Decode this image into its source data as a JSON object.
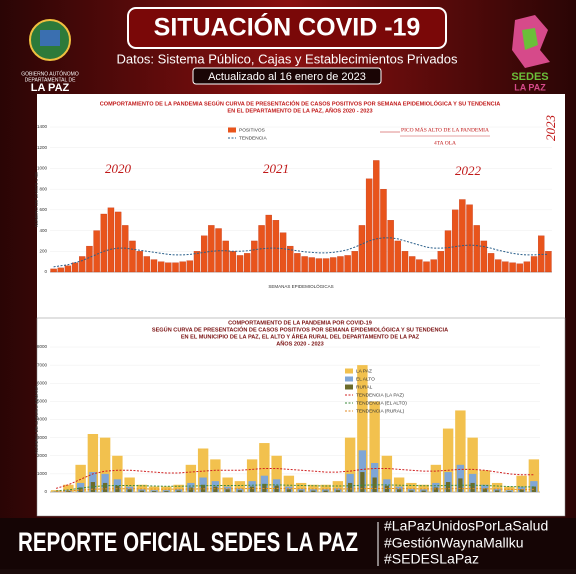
{
  "header": {
    "title": "SITUACIÓN COVID -19",
    "subtitle": "Datos: Sistema Público, Cajas y Establecimientos Privados",
    "updated": "Actualizado al 16 enero de 2023",
    "left_logo": [
      "GOBIERNO AUTÓNOMO",
      "DEPARTAMENTAL DE",
      "LA PAZ"
    ],
    "right_logo": [
      "SEDES",
      "LA PAZ"
    ]
  },
  "footer": {
    "title": "REPORTE OFICIAL SEDES LA PAZ",
    "hashtags": [
      "#LaPazUnidosPorLaSalud",
      "#GestiónWaynaMallku",
      "#SEDESLaPaz"
    ]
  },
  "chart_data": [
    {
      "type": "bar",
      "title": [
        "COMPORTAMIENTO DE LA PANDEMIA SEGÚN CURVA DE PRESENTACIÓN DE CASOS POSITIVOS POR SEMANA EPIDEMIOLÓGICA Y SU TENDENCIA",
        "EN EL DEPARTAMENTO DE LA PAZ, AÑOS 2020 - 2023"
      ],
      "y_label": "NÚMERO DE CASOS x SE",
      "x_label": "SEMANAS EPIDEMIOLÓGICAS",
      "year_labels": [
        "2020",
        "2021",
        "2022",
        "2023"
      ],
      "annotations": [
        "PICO MÁS ALTO DE LA PANDEMIA",
        "4TA OLA"
      ],
      "ylim": [
        0,
        1400
      ],
      "yticks": [
        0,
        200,
        400,
        600,
        800,
        1000,
        1200,
        1400
      ],
      "series": [
        {
          "name": "POSITIVOS",
          "type": "bar",
          "color": "#e8541c",
          "values": [
            30,
            40,
            60,
            90,
            150,
            250,
            400,
            560,
            620,
            580,
            450,
            300,
            200,
            150,
            120,
            100,
            90,
            90,
            100,
            110,
            200,
            350,
            450,
            420,
            300,
            200,
            160,
            180,
            300,
            450,
            550,
            500,
            380,
            250,
            180,
            150,
            140,
            130,
            130,
            140,
            150,
            160,
            200,
            450,
            900,
            1077,
            800,
            500,
            300,
            200,
            150,
            120,
            100,
            120,
            200,
            400,
            600,
            700,
            650,
            450,
            300,
            180,
            120,
            100,
            90,
            80,
            100,
            150,
            350,
            200
          ]
        },
        {
          "name": "TENDENCIA",
          "type": "line",
          "color": "#2a5f8a",
          "values": [
            50,
            60,
            70,
            90,
            110,
            140,
            170,
            200,
            220,
            230,
            230,
            220,
            210,
            200,
            190,
            180,
            170,
            165,
            165,
            170,
            180,
            190,
            200,
            205,
            205,
            200,
            200,
            205,
            215,
            225,
            230,
            230,
            225,
            215,
            205,
            195,
            190,
            185,
            185,
            190,
            200,
            215,
            240,
            270,
            300,
            320,
            330,
            330,
            320,
            300,
            280,
            260,
            240,
            230,
            230,
            235,
            245,
            255,
            260,
            255,
            245,
            230,
            210,
            195,
            180,
            170,
            165,
            165,
            170,
            170
          ]
        }
      ]
    },
    {
      "type": "bar",
      "title": [
        "COMPORTAMIENTO DE LA PANDEMIA POR COVID-19",
        "SEGÚN CURVA DE PRESENTACIÓN DE CASOS POSITIVOS POR SEMANA EPIDEMIOLÓGICA Y SU TENDENCIA",
        "EN EL  MUNICIPIO DE LA PAZ, EL ALTO Y ÁREA RURAL DEL DEPARTAMENTO DE LA PAZ",
        "AÑOS 2020 - 2023"
      ],
      "y_label": "NÚMERO DE CASOS x SEMANA",
      "ylim": [
        0,
        8000
      ],
      "yticks": [
        0,
        1000,
        2000,
        3000,
        4000,
        5000,
        6000,
        7000,
        8000
      ],
      "series": [
        {
          "name": "LA PAZ",
          "type": "bar",
          "color": "#f2c14e",
          "values": [
            100,
            400,
            1500,
            3200,
            3000,
            2000,
            800,
            400,
            300,
            300,
            400,
            1500,
            2400,
            1800,
            800,
            600,
            1800,
            2700,
            2000,
            900,
            500,
            400,
            400,
            600,
            3000,
            7000,
            5000,
            2000,
            800,
            500,
            400,
            1500,
            3500,
            4500,
            3000,
            1200,
            500,
            300,
            900,
            1800
          ]
        },
        {
          "name": "EL ALTO",
          "type": "bar",
          "color": "#7fa6d6",
          "values": [
            30,
            100,
            500,
            1100,
            1000,
            700,
            300,
            150,
            100,
            100,
            150,
            500,
            800,
            600,
            300,
            200,
            600,
            900,
            700,
            300,
            180,
            150,
            150,
            200,
            1000,
            2300,
            1600,
            700,
            300,
            180,
            150,
            500,
            1100,
            1500,
            1000,
            400,
            180,
            100,
            300,
            600
          ]
        },
        {
          "name": "RURAL",
          "type": "bar",
          "color": "#6b6b2a",
          "values": [
            10,
            50,
            250,
            550,
            500,
            350,
            150,
            80,
            50,
            50,
            80,
            250,
            400,
            300,
            150,
            100,
            300,
            450,
            350,
            150,
            90,
            80,
            80,
            100,
            500,
            1100,
            800,
            350,
            150,
            90,
            80,
            250,
            550,
            750,
            500,
            200,
            90,
            50,
            150,
            300
          ]
        },
        {
          "name": "TENDENCIA (LA PAZ)",
          "type": "line",
          "color": "#d02020",
          "values": [
            200,
            400,
            700,
            1000,
            1150,
            1200,
            1200,
            1150,
            1100,
            1050,
            1050,
            1100,
            1150,
            1200,
            1200,
            1200,
            1250,
            1300,
            1300,
            1250,
            1200,
            1150,
            1100,
            1100,
            1150,
            1250,
            1300,
            1300,
            1250,
            1200,
            1150,
            1150,
            1200,
            1250,
            1250,
            1200,
            1100,
            1000,
            950,
            950
          ]
        },
        {
          "name": "TENDENCIA (EL ALTO)",
          "type": "line",
          "color": "#3a8a3a",
          "values": [
            60,
            120,
            210,
            300,
            345,
            360,
            360,
            345,
            330,
            315,
            315,
            330,
            345,
            360,
            360,
            360,
            375,
            390,
            390,
            375,
            360,
            345,
            330,
            330,
            345,
            375,
            390,
            390,
            375,
            360,
            345,
            345,
            360,
            375,
            375,
            360,
            330,
            300,
            285,
            285
          ]
        },
        {
          "name": "TENDENCIA (RURAL)",
          "type": "line",
          "color": "#e08a20",
          "values": [
            30,
            60,
            105,
            150,
            172,
            180,
            180,
            172,
            165,
            157,
            157,
            165,
            172,
            180,
            180,
            180,
            187,
            195,
            195,
            187,
            180,
            172,
            165,
            165,
            172,
            187,
            195,
            195,
            187,
            180,
            172,
            172,
            180,
            187,
            187,
            180,
            165,
            150,
            142,
            142
          ]
        }
      ]
    }
  ]
}
